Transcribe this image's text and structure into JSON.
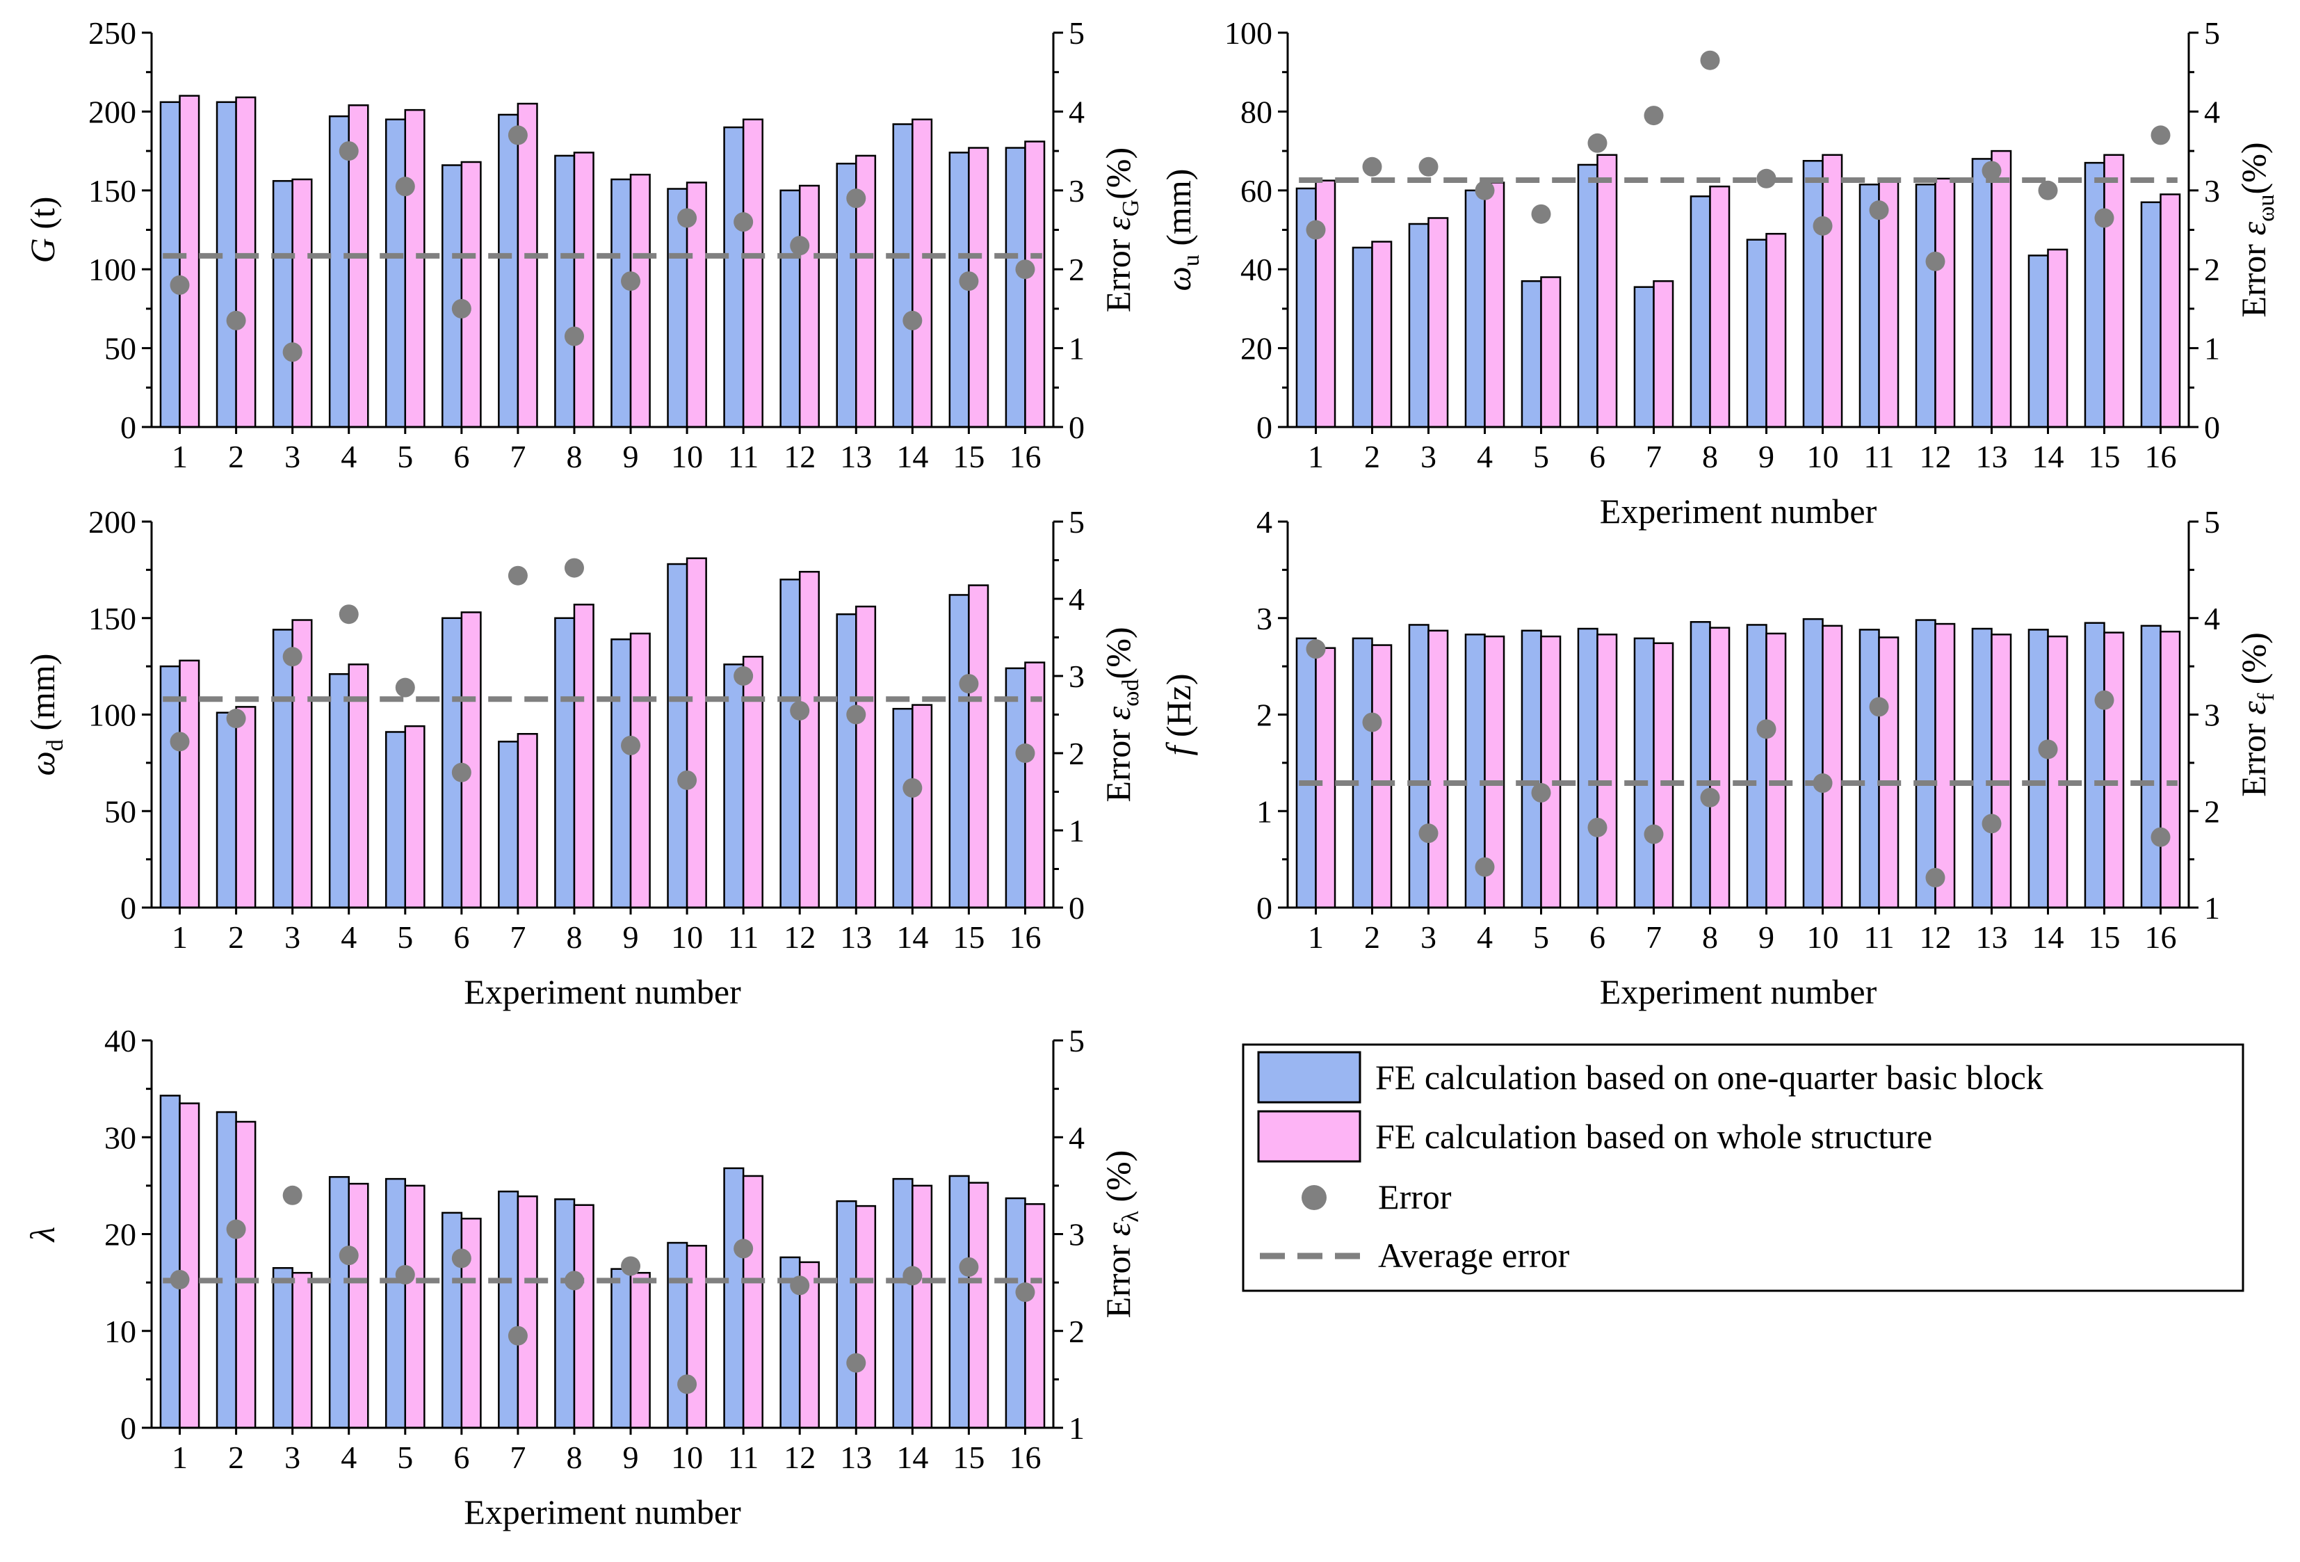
{
  "legend": {
    "items": [
      {
        "label": "FE calculation based on one-quarter basic block",
        "type": "bar",
        "color": "#9ab6f2"
      },
      {
        "label": "FE calculation based on  whole structure",
        "type": "bar",
        "color": "#fdb4f5"
      },
      {
        "label": "Error",
        "type": "marker",
        "color": "#808080"
      },
      {
        "label": "Average error",
        "type": "dashed-line",
        "color": "#808080"
      }
    ]
  },
  "colors": {
    "quarter": "#9ab6f2",
    "whole": "#fdb4f5",
    "error": "#808080",
    "average": "#808080"
  },
  "chart_data": [
    {
      "id": "G",
      "type": "bar",
      "title": "",
      "xlabel": "Experiment number",
      "show_xlabel": false,
      "ylabel_main": "G",
      "ylabel_rest": " (t)",
      "y2label_main": "Error ε",
      "y2label_sub": "G",
      "y2label_rest": "(%)",
      "categories": [
        "1",
        "2",
        "3",
        "4",
        "5",
        "6",
        "7",
        "8",
        "9",
        "10",
        "11",
        "12",
        "13",
        "14",
        "15",
        "16"
      ],
      "ylim": [
        0,
        250
      ],
      "yticks": [
        "0",
        "50",
        "100",
        "150",
        "200",
        "250"
      ],
      "y2lim": [
        0,
        5
      ],
      "y2ticks": [
        "0",
        "1",
        "2",
        "3",
        "4",
        "5"
      ],
      "series": [
        {
          "name": "FE calculation based on one-quarter basic block",
          "values": [
            206,
            206,
            156,
            197,
            195,
            166,
            198,
            172,
            157,
            151,
            190,
            150,
            167,
            192,
            174,
            177
          ]
        },
        {
          "name": "FE calculation based on  whole structure",
          "values": [
            210,
            209,
            157,
            204,
            201,
            168,
            205,
            174,
            160,
            155,
            195,
            153,
            172,
            195,
            177,
            181
          ]
        }
      ],
      "error": [
        1.8,
        1.35,
        0.95,
        3.5,
        3.05,
        1.5,
        3.7,
        1.15,
        1.85,
        2.65,
        2.6,
        2.3,
        2.9,
        1.35,
        1.85,
        2.0
      ],
      "average_error": 2.17
    },
    {
      "id": "omega_u",
      "type": "bar",
      "title": "",
      "xlabel": "Experiment number",
      "show_xlabel": true,
      "ylabel_main": "ω",
      "ylabel_sub": "u",
      "ylabel_rest": " (mm)",
      "y2label_main": "Error ε",
      "y2label_sub": "ωu",
      "y2label_rest": "(%)",
      "categories": [
        "1",
        "2",
        "3",
        "4",
        "5",
        "6",
        "7",
        "8",
        "9",
        "10",
        "11",
        "12",
        "13",
        "14",
        "15",
        "16"
      ],
      "ylim": [
        0,
        100
      ],
      "yticks": [
        "0",
        "20",
        "40",
        "60",
        "80",
        "100"
      ],
      "y2lim": [
        0,
        5
      ],
      "y2ticks": [
        "0",
        "1",
        "2",
        "3",
        "4",
        "5"
      ],
      "series": [
        {
          "name": "FE calculation based on one-quarter basic block",
          "values": [
            60.5,
            45.5,
            51.5,
            60,
            37,
            66.5,
            35.5,
            58.5,
            47.5,
            67.5,
            61.5,
            61.5,
            68,
            43.5,
            67,
            57
          ]
        },
        {
          "name": "FE calculation based on  whole structure",
          "values": [
            62.5,
            47,
            53,
            62,
            38,
            69,
            37,
            61,
            49,
            69,
            63,
            63,
            70,
            45,
            69,
            59
          ]
        }
      ],
      "error": [
        2.5,
        3.3,
        3.3,
        3.0,
        2.7,
        3.6,
        3.95,
        4.65,
        3.15,
        2.55,
        2.75,
        2.1,
        3.25,
        3.0,
        2.65,
        3.7
      ],
      "average_error": 3.13
    },
    {
      "id": "omega_d",
      "type": "bar",
      "title": "",
      "xlabel": "Experiment number",
      "show_xlabel": true,
      "ylabel_main": "ω",
      "ylabel_sub": "d",
      "ylabel_rest": " (mm)",
      "y2label_main": "Error ε",
      "y2label_sub": "ωd",
      "y2label_rest": "(%)",
      "categories": [
        "1",
        "2",
        "3",
        "4",
        "5",
        "6",
        "7",
        "8",
        "9",
        "10",
        "11",
        "12",
        "13",
        "14",
        "15",
        "16"
      ],
      "ylim": [
        0,
        200
      ],
      "yticks": [
        "0",
        "50",
        "100",
        "150",
        "200"
      ],
      "y2lim": [
        0,
        5
      ],
      "y2ticks": [
        "0",
        "1",
        "2",
        "3",
        "4",
        "5"
      ],
      "series": [
        {
          "name": "FE calculation based on one-quarter basic block",
          "values": [
            125,
            101,
            144,
            121,
            91,
            150,
            86,
            150,
            139,
            178,
            126,
            170,
            152,
            103,
            162,
            124
          ]
        },
        {
          "name": "FE calculation based on  whole structure",
          "values": [
            128,
            104,
            149,
            126,
            94,
            153,
            90,
            157,
            142,
            181,
            130,
            174,
            156,
            105,
            167,
            127
          ]
        }
      ],
      "error": [
        2.15,
        2.45,
        3.25,
        3.8,
        2.85,
        1.75,
        4.3,
        4.4,
        2.1,
        1.65,
        3.0,
        2.55,
        2.5,
        1.55,
        2.9,
        2.0
      ],
      "average_error": 2.7
    },
    {
      "id": "f",
      "type": "bar",
      "title": "",
      "xlabel": "Experiment number",
      "show_xlabel": true,
      "ylabel_main": "f",
      "ylabel_rest": " (Hz)",
      "y2label_main": "Error ε",
      "y2label_sub": "f",
      "y2label_rest": " (%)",
      "categories": [
        "1",
        "2",
        "3",
        "4",
        "5",
        "6",
        "7",
        "8",
        "9",
        "10",
        "11",
        "12",
        "13",
        "14",
        "15",
        "16"
      ],
      "ylim": [
        0,
        4
      ],
      "yticks": [
        "0",
        "1",
        "2",
        "3",
        "4"
      ],
      "y2lim": [
        1,
        5
      ],
      "y2ticks": [
        "1",
        "2",
        "3",
        "4",
        "5"
      ],
      "series": [
        {
          "name": "FE calculation based on one-quarter basic block",
          "values": [
            2.79,
            2.79,
            2.93,
            2.83,
            2.87,
            2.89,
            2.79,
            2.96,
            2.93,
            2.99,
            2.88,
            2.98,
            2.89,
            2.88,
            2.95,
            2.92
          ]
        },
        {
          "name": "FE calculation based on  whole structure",
          "values": [
            2.69,
            2.72,
            2.87,
            2.81,
            2.81,
            2.83,
            2.74,
            2.9,
            2.84,
            2.92,
            2.8,
            2.94,
            2.83,
            2.81,
            2.85,
            2.86
          ]
        }
      ],
      "error": [
        3.68,
        2.92,
        1.77,
        1.42,
        2.19,
        1.83,
        1.76,
        2.14,
        2.85,
        2.29,
        3.08,
        1.31,
        1.87,
        2.64,
        3.15,
        1.73
      ],
      "average_error": 2.29
    },
    {
      "id": "lambda",
      "type": "bar",
      "title": "",
      "xlabel": "Experiment number",
      "show_xlabel": true,
      "ylabel_main": "λ",
      "ylabel_rest": "",
      "y2label_main": "Error ε",
      "y2label_sub": "λ",
      "y2label_rest": " (%)",
      "categories": [
        "1",
        "2",
        "3",
        "4",
        "5",
        "6",
        "7",
        "8",
        "9",
        "10",
        "11",
        "12",
        "13",
        "14",
        "15",
        "16"
      ],
      "ylim": [
        0,
        40
      ],
      "yticks": [
        "0",
        "10",
        "20",
        "30",
        "40"
      ],
      "y2lim": [
        1,
        5
      ],
      "y2ticks": [
        "1",
        "2",
        "3",
        "4",
        "5"
      ],
      "series": [
        {
          "name": "FE calculation based on one-quarter basic block",
          "values": [
            34.3,
            32.6,
            16.5,
            25.9,
            25.7,
            22.2,
            24.4,
            23.6,
            16.4,
            19.1,
            26.8,
            17.6,
            23.4,
            25.7,
            26.0,
            23.7
          ]
        },
        {
          "name": "FE calculation based on  whole structure",
          "values": [
            33.5,
            31.6,
            16.0,
            25.2,
            25.0,
            21.6,
            23.9,
            23.0,
            16.0,
            18.8,
            26.0,
            17.1,
            22.9,
            25.0,
            25.3,
            23.1
          ]
        }
      ],
      "error": [
        2.53,
        3.05,
        3.4,
        2.78,
        2.58,
        2.75,
        1.95,
        2.52,
        2.67,
        1.45,
        2.85,
        2.47,
        1.67,
        2.57,
        2.66,
        2.4
      ],
      "average_error": 2.52
    }
  ]
}
